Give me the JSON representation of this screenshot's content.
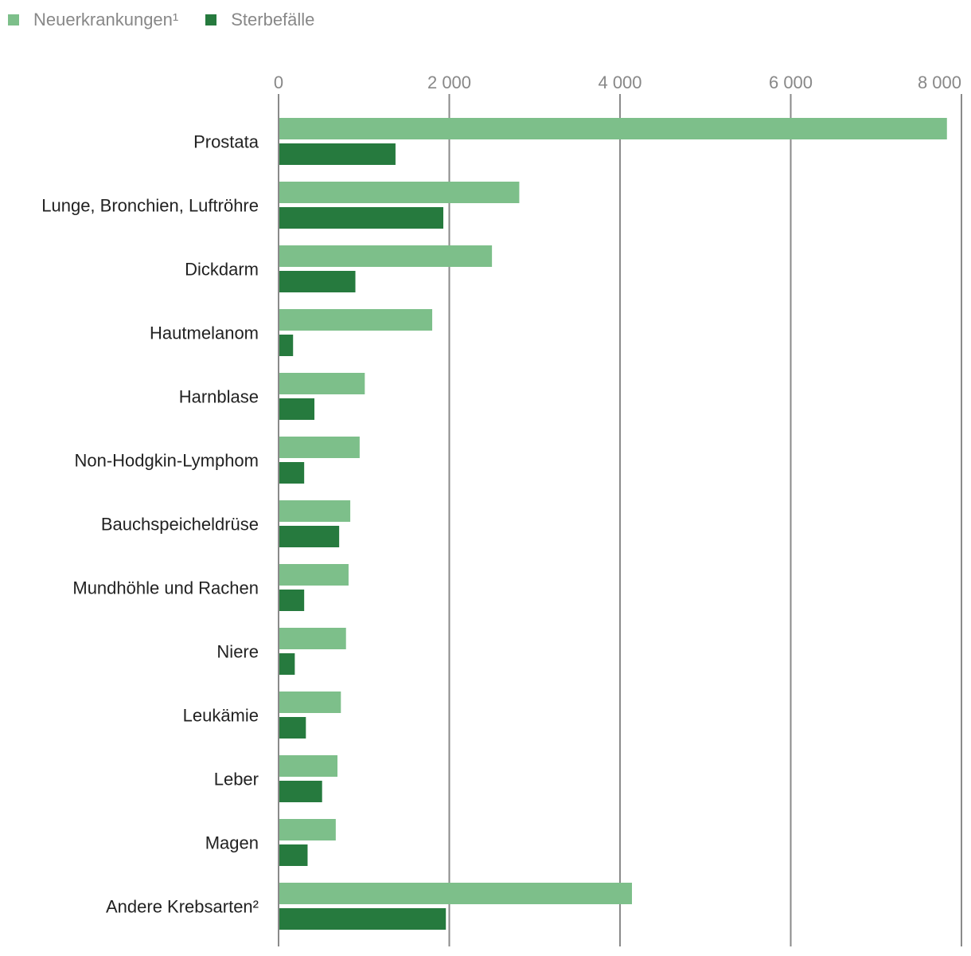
{
  "chart_data": {
    "type": "bar",
    "orientation": "horizontal",
    "title": "",
    "xlabel": "",
    "ylabel": "",
    "xlim": [
      0,
      8000
    ],
    "ticks": [
      0,
      2000,
      4000,
      6000,
      8000
    ],
    "tick_labels": [
      "0",
      "2 000",
      "4 000",
      "6 000",
      "8 000"
    ],
    "grid": true,
    "legend_position": "top-left",
    "categories": [
      "Prostata",
      "Lunge, Bronchien, Luftröhre",
      "Dickdarm",
      "Hautmelanom",
      "Harnblase",
      "Non-Hodgkin-Lymphom",
      "Bauchspeicheldrüse",
      "Mundhöhle und Rachen",
      "Niere",
      "Leukämie",
      "Leber",
      "Magen",
      "Andere Krebsarten²"
    ],
    "series": [
      {
        "name": "Neuerkrankungen¹",
        "color": "#7dbf8a",
        "values": [
          7830,
          2820,
          2500,
          1800,
          1010,
          950,
          840,
          820,
          790,
          730,
          690,
          670,
          4140
        ]
      },
      {
        "name": "Sterbefälle",
        "color": "#267a3e",
        "values": [
          1370,
          1930,
          900,
          170,
          420,
          300,
          710,
          300,
          190,
          320,
          510,
          340,
          1960
        ]
      }
    ]
  }
}
